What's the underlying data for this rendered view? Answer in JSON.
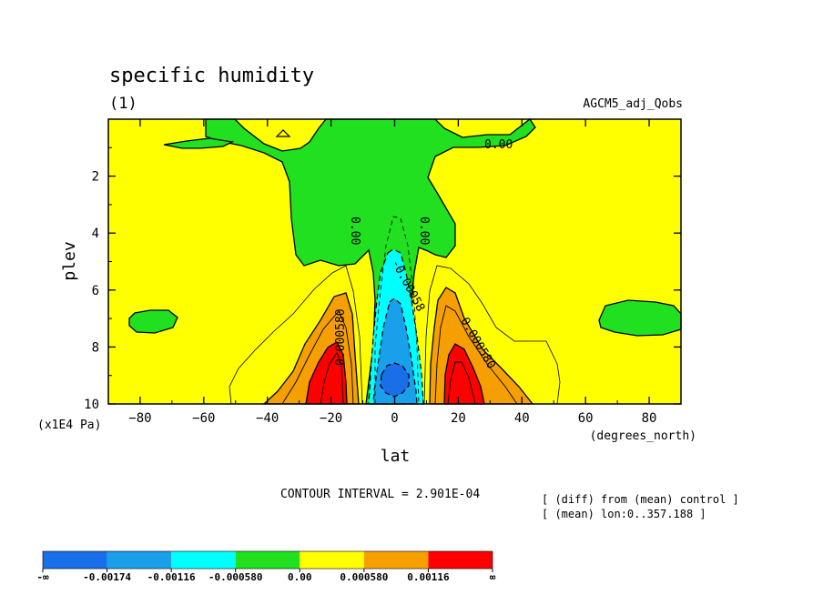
{
  "chart_data": {
    "type": "heatmap",
    "title": "specific humidity",
    "subtitle": "(1)",
    "dataset_label": "AGCM5_adj_Qobs",
    "xlabel": "lat",
    "xunit": "(degrees_north)",
    "ylabel": "plev",
    "yunit": "(x1E4 Pa)",
    "xlim": [
      -90,
      90
    ],
    "ylim": [
      10,
      0
    ],
    "x_ticks": [
      -80,
      -60,
      -40,
      -20,
      0,
      20,
      40,
      60,
      80
    ],
    "y_ticks": [
      2,
      4,
      6,
      8,
      10
    ],
    "contour_interval_text": "CONTOUR INTERVAL = 2.901E-04",
    "notes": [
      "[ (diff) from (mean) control ]",
      "[ (mean) lon:0..357.188 ]"
    ],
    "contour_labels": [
      "0.00",
      "0.00",
      "0.00",
      "-0.00058",
      "0.000580",
      "0.000580"
    ],
    "colorbar": {
      "labels": [
        "-∞",
        "-0.00174",
        "-0.00116",
        "-0.000580",
        "0.00",
        "0.000580",
        "0.00116",
        "∞"
      ],
      "colors": [
        "#1a6ee8",
        "#1aa0ea",
        "#00ffff",
        "#20e020",
        "#ffff00",
        "#f5a000",
        "#ff0000"
      ]
    },
    "regions": [
      {
        "level": "0.00 to 0.000580",
        "color": "#ffff00",
        "description": "background"
      },
      {
        "level": "-0.000580 to 0.00",
        "color": "#20e020",
        "description": "upper tropospheric drying, equatorial column"
      },
      {
        "level": "-0.00116 to -0.000580",
        "color": "#00ffff",
        "description": "equatorial lower troposphere"
      },
      {
        "level": "-0.00174 to -0.00116",
        "color": "#1aa0ea",
        "description": "equatorial lower troposphere"
      },
      {
        "level": "< -0.00174",
        "color": "#1a6ee8",
        "description": "equator near surface"
      },
      {
        "level": "0.000580 to 0.00116",
        "color": "#f5a000",
        "description": "subtropical lower troposphere"
      },
      {
        "level": "> 0.00116",
        "color": "#ff0000",
        "description": "near 20S and 20N near surface"
      }
    ]
  }
}
